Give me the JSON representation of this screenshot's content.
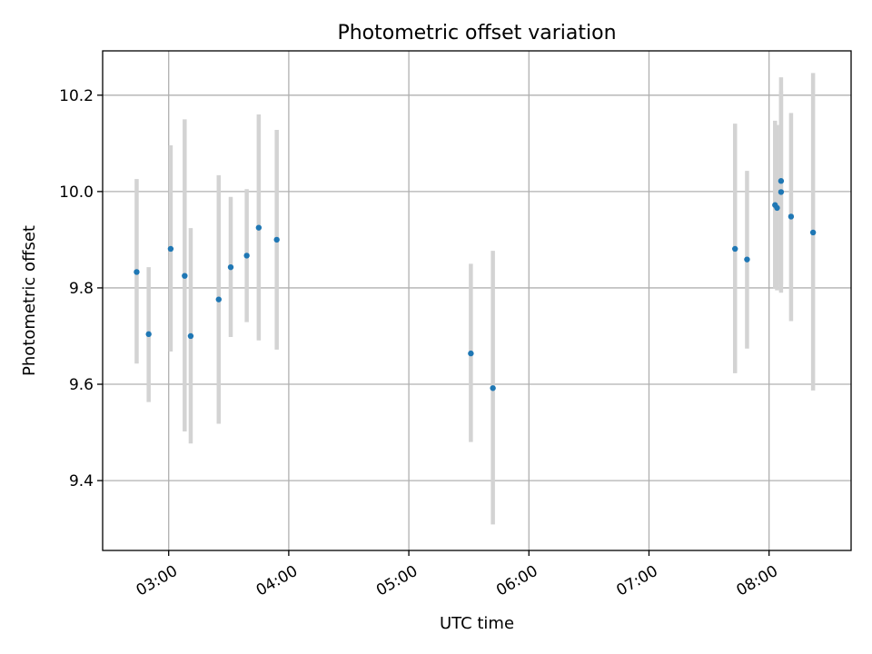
{
  "chart_data": {
    "type": "scatter",
    "title": "Photometric offset variation",
    "xlabel": "UTC time",
    "ylabel": "Photometric offset",
    "x_ticks": [
      "03:00",
      "04:00",
      "05:00",
      "06:00",
      "07:00",
      "08:00"
    ],
    "y_ticks": [
      "9.4",
      "9.6",
      "9.8",
      "10.0",
      "10.2"
    ],
    "xlim": [
      "02:27",
      "08:41"
    ],
    "ylim": [
      9.255,
      10.292
    ],
    "grid": true,
    "colors": {
      "point": "#1f77b4",
      "errorbar": "#d3d3d3"
    },
    "series": [
      {
        "points": [
          {
            "x": "02:44",
            "y": 9.833,
            "lo": 9.643,
            "hi": 10.026
          },
          {
            "x": "02:50",
            "y": 9.704,
            "lo": 9.563,
            "hi": 9.843
          },
          {
            "x": "03:01",
            "y": 9.881,
            "lo": 9.668,
            "hi": 10.096
          },
          {
            "x": "03:08",
            "y": 9.825,
            "lo": 9.502,
            "hi": 10.15
          },
          {
            "x": "03:11",
            "y": 9.7,
            "lo": 9.477,
            "hi": 9.924
          },
          {
            "x": "03:25",
            "y": 9.776,
            "lo": 9.518,
            "hi": 10.034
          },
          {
            "x": "03:31",
            "y": 9.843,
            "lo": 9.698,
            "hi": 9.989
          },
          {
            "x": "03:39",
            "y": 9.867,
            "lo": 9.729,
            "hi": 10.005
          },
          {
            "x": "03:45",
            "y": 9.925,
            "lo": 9.691,
            "hi": 10.16
          },
          {
            "x": "03:54",
            "y": 9.9,
            "lo": 9.672,
            "hi": 10.128
          },
          {
            "x": "05:31",
            "y": 9.664,
            "lo": 9.48,
            "hi": 9.85
          },
          {
            "x": "05:42",
            "y": 9.592,
            "lo": 9.309,
            "hi": 9.877
          },
          {
            "x": "07:43",
            "y": 9.881,
            "lo": 9.623,
            "hi": 10.141
          },
          {
            "x": "07:49",
            "y": 9.859,
            "lo": 9.674,
            "hi": 10.043
          },
          {
            "x": "08:03",
            "y": 9.972,
            "lo": 9.798,
            "hi": 10.147
          },
          {
            "x": "08:04",
            "y": 9.966,
            "lo": 9.795,
            "hi": 10.138
          },
          {
            "x": "08:06",
            "y": 10.022,
            "lo": 9.807,
            "hi": 10.237
          },
          {
            "x": "08:06",
            "y": 9.999,
            "lo": 9.79,
            "hi": 10.208
          },
          {
            "x": "08:11",
            "y": 9.948,
            "lo": 9.731,
            "hi": 10.163
          },
          {
            "x": "08:22",
            "y": 9.915,
            "lo": 9.587,
            "hi": 10.246
          }
        ]
      }
    ]
  }
}
